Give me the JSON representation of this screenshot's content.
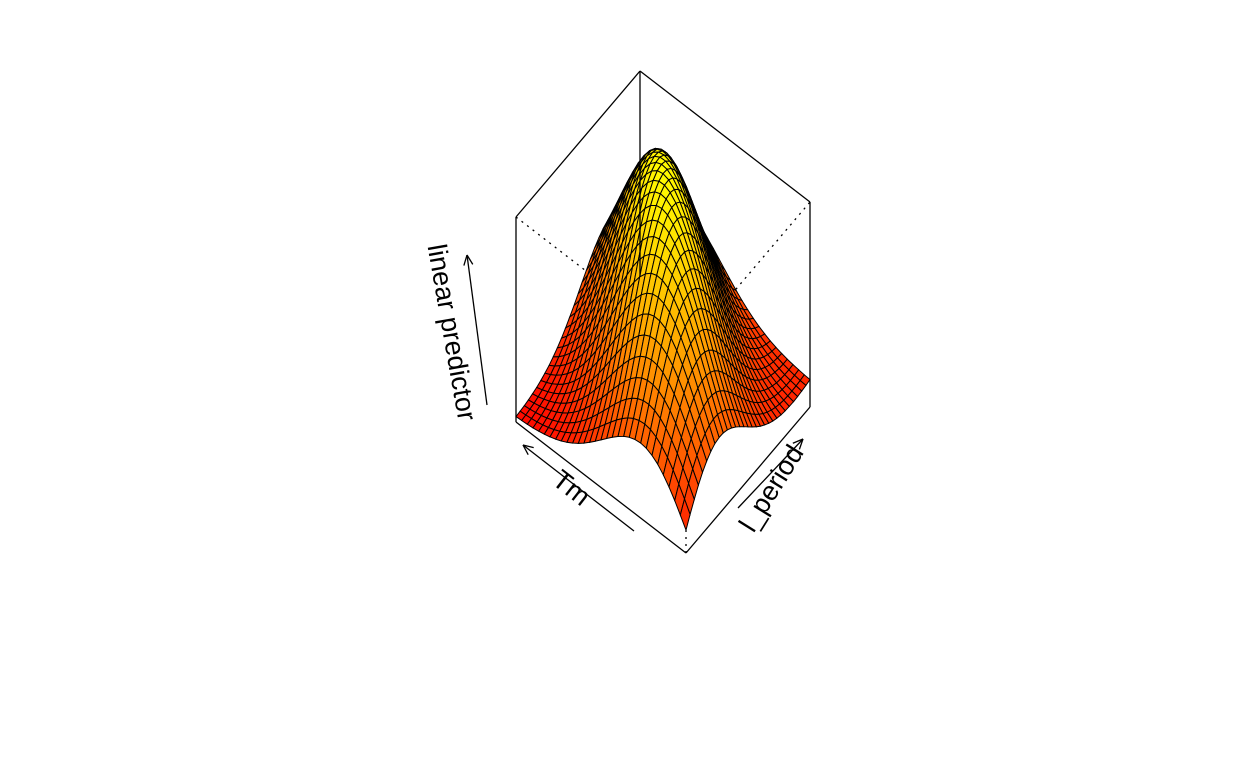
{
  "chart_data": {
    "type": "surface",
    "title": "",
    "axes": {
      "x": {
        "label": "Tm",
        "range": [
          0,
          1
        ]
      },
      "y": {
        "label": "l_period",
        "range": [
          0,
          1
        ]
      },
      "z": {
        "label": "linear predictor",
        "range": [
          0,
          1
        ]
      }
    },
    "grid_lines": 30,
    "colors": {
      "low": "#ff0000",
      "high": "#ffff00",
      "mesh": "#000000",
      "box": "#000000"
    },
    "ridge": {
      "description": "Surface peaks along a ridge, highest at the back corner and lowest at the front corner."
    }
  }
}
